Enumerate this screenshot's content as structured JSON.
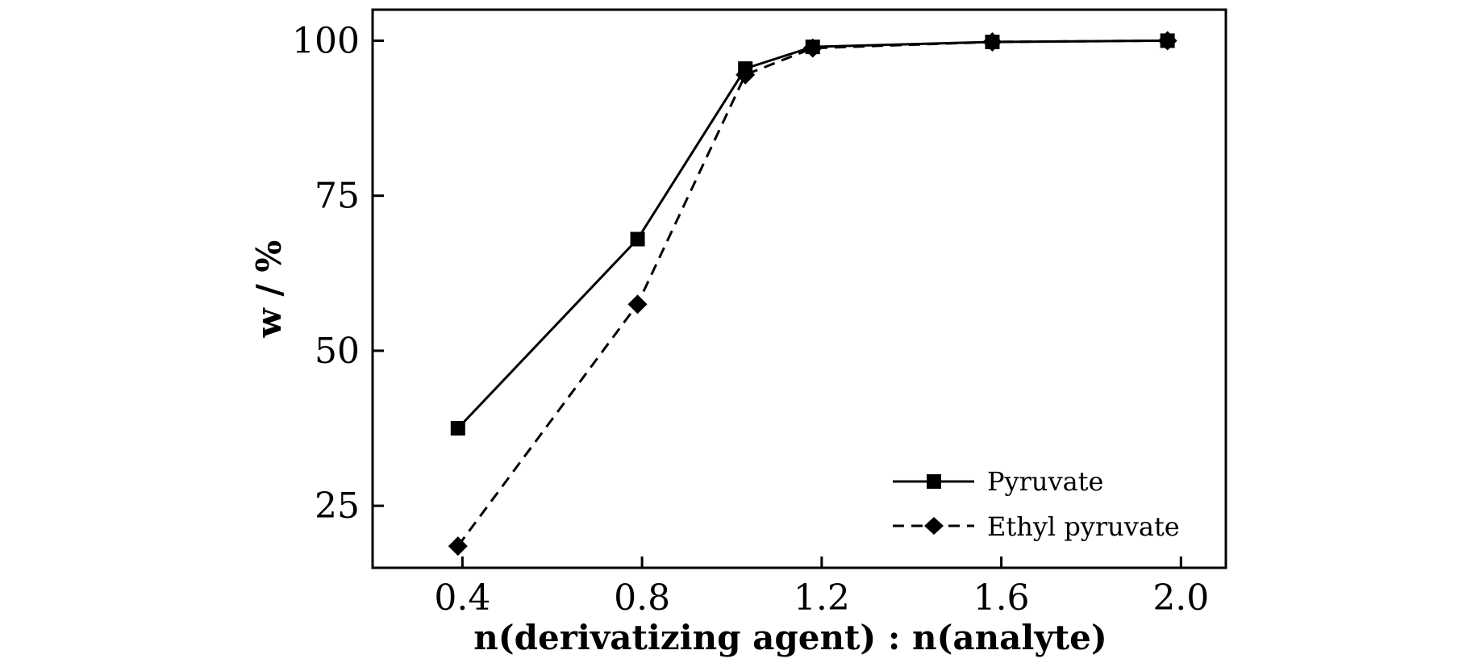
{
  "chart_data": {
    "type": "line",
    "xlabel": "n(derivatizing agent) : n(analyte)",
    "ylabel": "w / %",
    "xlim": [
      0.2,
      2.1
    ],
    "ylim": [
      15,
      105
    ],
    "xticks": [
      0.4,
      0.8,
      1.2,
      1.6,
      2.0
    ],
    "xtick_labels": [
      "0.4",
      "0.8",
      "1.2",
      "1.6",
      "2.0"
    ],
    "yticks": [
      25,
      50,
      75,
      100
    ],
    "ytick_labels": [
      "25",
      "50",
      "75",
      "100"
    ],
    "grid": false,
    "legend_position": "bottom-right",
    "series": [
      {
        "name": "Pyruvate",
        "marker": "square",
        "line_style": "solid",
        "x": [
          0.39,
          0.79,
          1.03,
          1.18,
          1.58,
          1.97
        ],
        "y": [
          37.5,
          68,
          95.5,
          99,
          99.8,
          100
        ]
      },
      {
        "name": "Ethyl pyruvate",
        "marker": "diamond",
        "line_style": "dashed",
        "x": [
          0.39,
          0.79,
          1.03,
          1.18,
          1.58,
          1.97
        ],
        "y": [
          18.5,
          57.5,
          94.5,
          98.8,
          99.8,
          100
        ]
      }
    ],
    "colors": {
      "line": "#000000",
      "marker": "#000000"
    }
  }
}
